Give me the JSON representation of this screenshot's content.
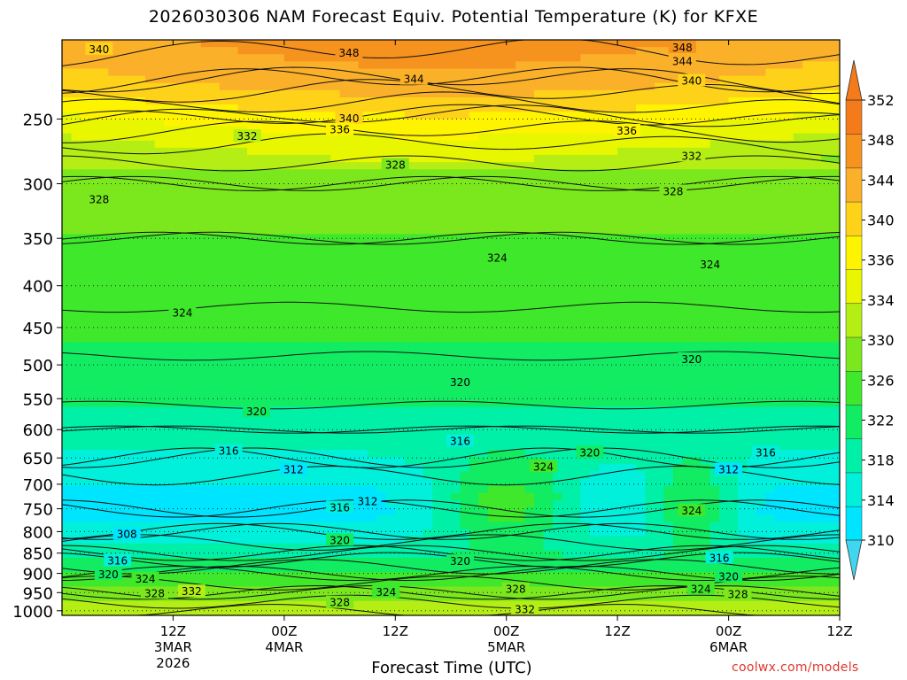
{
  "title": "2026030306 NAM Forecast Equiv. Potential Temperature (K) for KFXE",
  "x_axis_title": "Forecast Time (UTC)",
  "credit": "coolwx.com/models",
  "colors": {
    "ground": "#9a5a2a",
    "accent_credit": "#e0362d",
    "scale": [
      "#00e5ff",
      "#00f0dc",
      "#00f0a8",
      "#12ec62",
      "#3fe82a",
      "#7ae81c",
      "#b4ee14",
      "#e8f600",
      "#fff400",
      "#ffd21a",
      "#fbb02a",
      "#f6921e",
      "#f47a1a"
    ]
  },
  "chart_data": {
    "type": "heatmap",
    "title": "2026030306 NAM Forecast Equiv. Potential Temperature (K) for KFXE",
    "xlabel": "Forecast Time (UTC)",
    "ylabel": "",
    "y_scale": "log",
    "y_reversed": true,
    "y_ticks": [
      250,
      300,
      350,
      400,
      450,
      500,
      550,
      600,
      650,
      700,
      750,
      800,
      850,
      900,
      950,
      1000
    ],
    "y_range": [
      200,
      1013
    ],
    "x_ticks_hours": [
      12,
      24,
      36,
      48,
      60,
      72,
      84
    ],
    "x_tick_labels": [
      [
        "12Z",
        "3MAR",
        "2026"
      ],
      [
        "00Z",
        "4MAR"
      ],
      [
        "12Z"
      ],
      [
        "00Z",
        "5MAR"
      ],
      [
        "12Z"
      ],
      [
        "00Z",
        "6MAR"
      ],
      [
        "12Z"
      ]
    ],
    "x_range_hours": [
      0,
      84
    ],
    "colorbar": {
      "levels": [
        310,
        312,
        314,
        316,
        318,
        320,
        322,
        324,
        326,
        328,
        330,
        332,
        334,
        336,
        338,
        340,
        342,
        344,
        346,
        348,
        350,
        352
      ],
      "tick_labels": [
        "310",
        "314",
        "318",
        "322",
        "326",
        "330",
        "334",
        "336",
        "340",
        "344",
        "348",
        "352"
      ],
      "units": "K"
    },
    "field_profile": {
      "pressure_hPa": [
        200,
        225,
        250,
        275,
        300,
        350,
        400,
        450,
        500,
        550,
        600,
        650,
        700,
        750,
        800,
        850,
        900,
        950,
        1000
      ],
      "theta_e_K": [
        345,
        342,
        336,
        331,
        328,
        326,
        324.5,
        323.5,
        321.5,
        320.5,
        318,
        316,
        313,
        312,
        314,
        318,
        324,
        328,
        332
      ]
    },
    "contour_labels": [
      {
        "value": "340",
        "hour": 4,
        "p": 205
      },
      {
        "value": "348",
        "hour": 31,
        "p": 207
      },
      {
        "value": "344",
        "hour": 38,
        "p": 223
      },
      {
        "value": "348",
        "hour": 67,
        "p": 204
      },
      {
        "value": "344",
        "hour": 67,
        "p": 212
      },
      {
        "value": "340",
        "hour": 68,
        "p": 224
      },
      {
        "value": "340",
        "hour": 31,
        "p": 249
      },
      {
        "value": "336",
        "hour": 30,
        "p": 257
      },
      {
        "value": "332",
        "hour": 20,
        "p": 262
      },
      {
        "value": "336",
        "hour": 61,
        "p": 258
      },
      {
        "value": "328",
        "hour": 36,
        "p": 284
      },
      {
        "value": "332",
        "hour": 68,
        "p": 277
      },
      {
        "value": "328",
        "hour": 4,
        "p": 313
      },
      {
        "value": "328",
        "hour": 66,
        "p": 306
      },
      {
        "value": "324",
        "hour": 47,
        "p": 369
      },
      {
        "value": "324",
        "hour": 70,
        "p": 376
      },
      {
        "value": "324",
        "hour": 13,
        "p": 431
      },
      {
        "value": "320",
        "hour": 68,
        "p": 491
      },
      {
        "value": "320",
        "hour": 43,
        "p": 524
      },
      {
        "value": "320",
        "hour": 21,
        "p": 569
      },
      {
        "value": "316",
        "hour": 43,
        "p": 619
      },
      {
        "value": "316",
        "hour": 18,
        "p": 636
      },
      {
        "value": "316",
        "hour": 76,
        "p": 639
      },
      {
        "value": "320",
        "hour": 57,
        "p": 639
      },
      {
        "value": "312",
        "hour": 25,
        "p": 670
      },
      {
        "value": "324",
        "hour": 52,
        "p": 665
      },
      {
        "value": "312",
        "hour": 72,
        "p": 670
      },
      {
        "value": "312",
        "hour": 33,
        "p": 733
      },
      {
        "value": "316",
        "hour": 30,
        "p": 746
      },
      {
        "value": "324",
        "hour": 68,
        "p": 753
      },
      {
        "value": "308",
        "hour": 7,
        "p": 804
      },
      {
        "value": "320",
        "hour": 30,
        "p": 818
      },
      {
        "value": "316",
        "hour": 6,
        "p": 867
      },
      {
        "value": "320",
        "hour": 43,
        "p": 868
      },
      {
        "value": "316",
        "hour": 71,
        "p": 860
      },
      {
        "value": "320",
        "hour": 5,
        "p": 901
      },
      {
        "value": "324",
        "hour": 9,
        "p": 912
      },
      {
        "value": "320",
        "hour": 72,
        "p": 906
      },
      {
        "value": "328",
        "hour": 10,
        "p": 950
      },
      {
        "value": "332",
        "hour": 14,
        "p": 945
      },
      {
        "value": "324",
        "hour": 35,
        "p": 947
      },
      {
        "value": "328",
        "hour": 49,
        "p": 939
      },
      {
        "value": "324",
        "hour": 69,
        "p": 939
      },
      {
        "value": "328",
        "hour": 73,
        "p": 953
      },
      {
        "value": "328",
        "hour": 30,
        "p": 975
      },
      {
        "value": "332",
        "hour": 50,
        "p": 994
      }
    ]
  }
}
